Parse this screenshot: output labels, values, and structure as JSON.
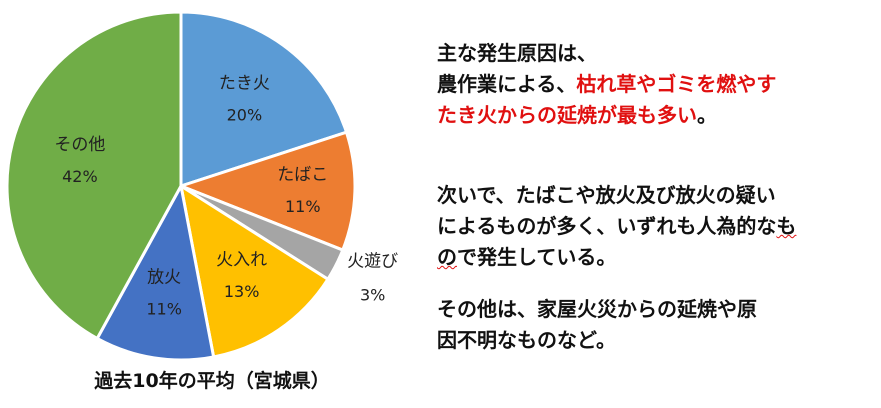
{
  "chart_data": {
    "type": "pie",
    "categories": [
      "たき火",
      "たばこ",
      "火遊び",
      "火入れ",
      "放火",
      "その他"
    ],
    "values": [
      20,
      11,
      3,
      13,
      11,
      42
    ],
    "percent_labels": [
      "20%",
      "11%",
      "3%",
      "13%",
      "11%",
      "42%"
    ],
    "colors": [
      "#5b9bd5",
      "#ed7d31",
      "#a5a5a5",
      "#ffc000",
      "#4472c4",
      "#70ad47"
    ],
    "start_angle_deg": 0,
    "direction": "clockwise",
    "caption": "過去10年の平均（宮城県）"
  },
  "text_panel": {
    "p1_line1": "主な発生原因は、",
    "p1_line2_black": "農作業による、",
    "p1_line2_red": "枯れ草やゴミを燃やす",
    "p1_line3_red": "たき火からの延焼が最も多い",
    "p1_line3_end": "。",
    "p2_line1": "次いで、たばこや放火及び放火の疑い",
    "p2_line2_a": "によるものが多く、いずれも人為的な",
    "p2_line2_b": "も",
    "p2_line3_a": "の",
    "p2_line3_b": "で発生している。",
    "p3_line1": "その他は、家屋火災からの延焼や原",
    "p3_line2": "因不明なものなど。"
  }
}
